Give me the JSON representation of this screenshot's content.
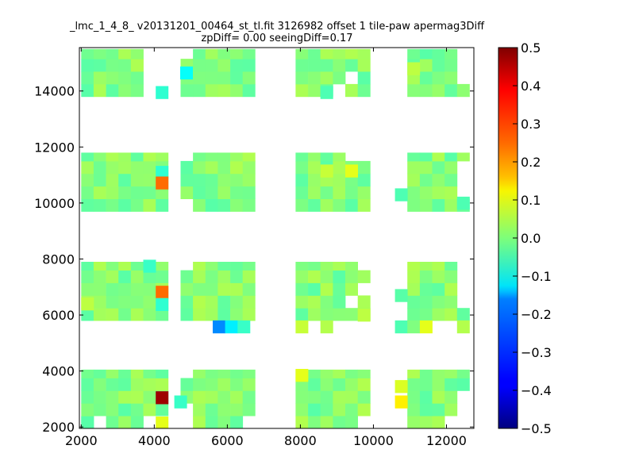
{
  "chart_data": {
    "type": "heatmap",
    "title": "_lmc_1_4_8_ v20131201_00464_st_tl.fit 3126982 offset 1 tile-paw apermag3Diff",
    "subtitle": "zpDiff= 0.00 seeingDiff=0.17",
    "xlim": [
      1950,
      12750
    ],
    "ylim": [
      1950,
      15550
    ],
    "xticks": [
      "2000",
      "4000",
      "6000",
      "8000",
      "10000",
      "12000"
    ],
    "yticks": [
      "2000",
      "4000",
      "6000",
      "8000",
      "10000",
      "12000",
      "14000"
    ],
    "colorbar": {
      "range": [
        -0.5,
        0.5
      ],
      "colormap": "jet",
      "ticks": [
        "0.5",
        "0.4",
        "0.3",
        "0.2",
        "0.1",
        "0.0",
        "−0.1",
        "−0.2",
        "−0.3",
        "−0.4",
        "−0.5"
      ]
    },
    "grid": false,
    "cell_size": [
      340,
      450
    ],
    "columns_x": [
      2170,
      2510,
      2850,
      3190,
      3530,
      3870,
      4210,
      4890,
      5230,
      5570,
      5910,
      6250,
      6590,
      8040,
      8380,
      8720,
      9060,
      9400,
      9740,
      10420,
      10760,
      11100,
      11440,
      11780,
      12120,
      12460
    ],
    "detectors": [
      {
        "x0": 2000,
        "x1": 4400,
        "y0": 13800,
        "y1": 15500
      },
      {
        "x0": 4700,
        "x1": 6980,
        "y0": 13800,
        "y1": 15500
      },
      {
        "x0": 7850,
        "x1": 10100,
        "y0": 13800,
        "y1": 15500
      },
      {
        "x0": 10600,
        "x1": 12650,
        "y0": 13800,
        "y1": 15500
      },
      {
        "x0": 2000,
        "x1": 4400,
        "y0": 9700,
        "y1": 11800
      },
      {
        "x0": 4700,
        "x1": 6980,
        "y0": 9700,
        "y1": 11800
      },
      {
        "x0": 7850,
        "x1": 10100,
        "y0": 9700,
        "y1": 11800
      },
      {
        "x0": 10600,
        "x1": 12650,
        "y0": 9700,
        "y1": 11800
      },
      {
        "x0": 2000,
        "x1": 4400,
        "y0": 5800,
        "y1": 7900
      },
      {
        "x0": 4700,
        "x1": 6980,
        "y0": 5800,
        "y1": 7900
      },
      {
        "x0": 7850,
        "x1": 10100,
        "y0": 5800,
        "y1": 7900
      },
      {
        "x0": 10600,
        "x1": 12650,
        "y0": 5800,
        "y1": 7900
      },
      {
        "x0": 2000,
        "x1": 4400,
        "y0": 1950,
        "y1": 4050
      },
      {
        "x0": 4700,
        "x1": 6980,
        "y0": 1950,
        "y1": 4050
      },
      {
        "x0": 7850,
        "x1": 10100,
        "y0": 1950,
        "y1": 4050
      },
      {
        "x0": 10600,
        "x1": 12650,
        "y0": 1950,
        "y1": 4050
      }
    ],
    "gaps": [
      [
        4040,
        14400
      ],
      [
        4040,
        14800
      ],
      [
        4040,
        15200
      ],
      [
        4720,
        15200
      ],
      [
        9060,
        14000
      ],
      [
        9400,
        14400
      ],
      [
        10420,
        14000
      ],
      [
        10420,
        14400
      ],
      [
        10420,
        14800
      ],
      [
        10420,
        15200
      ],
      [
        12460,
        15200
      ],
      [
        12460,
        14800
      ],
      [
        12460,
        14400
      ],
      [
        3870,
        13950
      ],
      [
        4210,
        13950
      ],
      [
        9740,
        11600
      ],
      [
        9400,
        11600
      ],
      [
        10420,
        11600
      ],
      [
        10420,
        11200
      ],
      [
        10420,
        10800
      ],
      [
        10420,
        10400
      ],
      [
        10420,
        10000
      ],
      [
        12460,
        11200
      ],
      [
        12460,
        10800
      ],
      [
        12460,
        10400
      ],
      [
        4720,
        11600
      ],
      [
        4720,
        10000
      ],
      [
        6930,
        5900
      ],
      [
        9740,
        7700
      ],
      [
        9740,
        6800
      ],
      [
        9400,
        6400
      ],
      [
        10420,
        7700
      ],
      [
        10420,
        7300
      ],
      [
        10420,
        6900
      ],
      [
        10420,
        6400
      ],
      [
        10420,
        6000
      ],
      [
        10760,
        7700
      ],
      [
        10760,
        7300
      ],
      [
        12460,
        7700
      ],
      [
        12460,
        7300
      ],
      [
        12460,
        6900
      ],
      [
        12460,
        6400
      ],
      [
        4720,
        7700
      ],
      [
        10420,
        3900
      ],
      [
        10420,
        3500
      ],
      [
        10420,
        3100
      ],
      [
        10420,
        2700
      ],
      [
        10420,
        2300
      ],
      [
        12460,
        3100
      ],
      [
        12460,
        2700
      ],
      [
        12460,
        2300
      ],
      [
        12120,
        2300
      ],
      [
        4720,
        4000
      ],
      [
        4720,
        2700
      ],
      [
        4720,
        2300
      ],
      [
        6590,
        2300
      ],
      [
        6930,
        3900
      ],
      [
        9740,
        2300
      ],
      [
        10080,
        2500
      ],
      [
        3870,
        2000
      ],
      [
        2510,
        2100
      ],
      [
        7700,
        5900
      ],
      [
        4380,
        2300
      ]
    ],
    "highlights": [
      {
        "x": 4880,
        "y": 14650,
        "value": -0.12
      },
      {
        "x": 4210,
        "y": 13950,
        "value": -0.08
      },
      {
        "x": 4210,
        "y": 11100,
        "value": -0.08
      },
      {
        "x": 4210,
        "y": 10720,
        "value": 0.27
      },
      {
        "x": 3870,
        "y": 7750,
        "value": -0.07
      },
      {
        "x": 4210,
        "y": 6820,
        "value": 0.27
      },
      {
        "x": 4210,
        "y": 6380,
        "value": -0.08
      },
      {
        "x": 5770,
        "y": 5580,
        "value": -0.24
      },
      {
        "x": 6110,
        "y": 5580,
        "value": -0.14
      },
      {
        "x": 6450,
        "y": 5580,
        "value": -0.07
      },
      {
        "x": 8040,
        "y": 5580,
        "value": 0.07
      },
      {
        "x": 8720,
        "y": 5580,
        "value": 0.05
      },
      {
        "x": 10760,
        "y": 5580,
        "value": -0.05
      },
      {
        "x": 11100,
        "y": 5580,
        "value": 0.0
      },
      {
        "x": 11440,
        "y": 5580,
        "value": 0.1
      },
      {
        "x": 12460,
        "y": 5580,
        "value": 0.05
      },
      {
        "x": 4210,
        "y": 3050,
        "value": 0.47
      },
      {
        "x": 4210,
        "y": 2150,
        "value": 0.1
      },
      {
        "x": 4720,
        "y": 2900,
        "value": -0.07
      },
      {
        "x": 8040,
        "y": 3850,
        "value": 0.1
      },
      {
        "x": 10760,
        "y": 3450,
        "value": 0.09
      },
      {
        "x": 10760,
        "y": 2900,
        "value": 0.14
      },
      {
        "x": 2170,
        "y": 2150,
        "value": -0.04
      },
      {
        "x": 8720,
        "y": 11150,
        "value": 0.07
      },
      {
        "x": 9400,
        "y": 11150,
        "value": 0.1
      },
      {
        "x": 10760,
        "y": 10300,
        "value": -0.05
      },
      {
        "x": 12460,
        "y": 10000,
        "value": -0.05
      },
      {
        "x": 11100,
        "y": 14800,
        "value": 0.06
      },
      {
        "x": 8720,
        "y": 13950,
        "value": -0.05
      },
      {
        "x": 2170,
        "y": 6400,
        "value": 0.06
      },
      {
        "x": 9740,
        "y": 6000,
        "value": 0.06
      },
      {
        "x": 10760,
        "y": 6700,
        "value": -0.04
      }
    ]
  }
}
